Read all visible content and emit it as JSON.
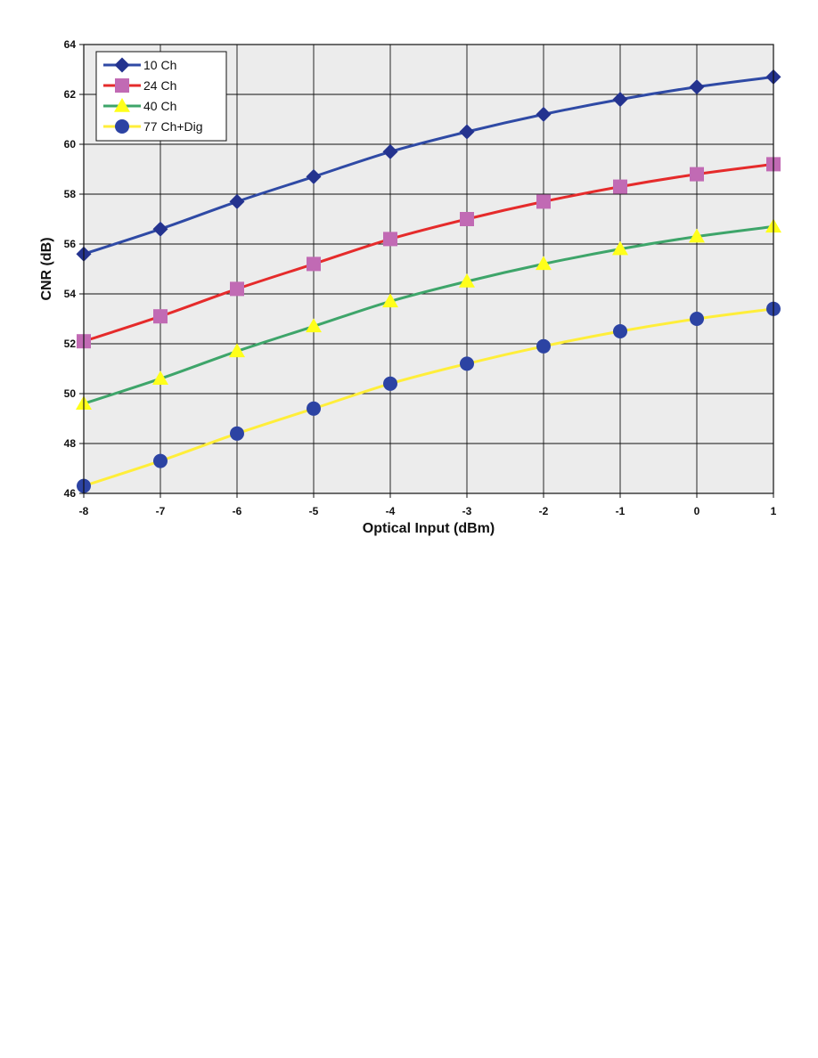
{
  "chart_data": {
    "type": "line",
    "title": "",
    "xlabel": "Optical Input (dBm)",
    "ylabel": "CNR (dB)",
    "x": [
      -8,
      -7,
      -6,
      -5,
      -4,
      -3,
      -2,
      -1,
      0,
      1
    ],
    "xlim": [
      -8,
      1
    ],
    "ylim": [
      46,
      64
    ],
    "xticks": [
      -8,
      -7,
      -6,
      -5,
      -4,
      -3,
      -2,
      -1,
      0,
      1
    ],
    "yticks": [
      46,
      48,
      50,
      52,
      54,
      56,
      58,
      60,
      62,
      64
    ],
    "grid": true,
    "legend_position": "top-left",
    "series": [
      {
        "name": "10 Ch",
        "values": [
          55.6,
          56.6,
          57.7,
          58.7,
          59.7,
          60.5,
          61.2,
          61.8,
          62.3,
          62.7
        ],
        "line_color": "#2f4aa5",
        "marker_color": "#24338f",
        "marker": "diamond"
      },
      {
        "name": "24 Ch",
        "values": [
          52.1,
          53.1,
          54.2,
          55.2,
          56.2,
          57.0,
          57.7,
          58.3,
          58.8,
          59.2
        ],
        "line_color": "#e52b2b",
        "marker_color": "#c16ab4",
        "marker": "square"
      },
      {
        "name": "40 Ch",
        "values": [
          49.6,
          50.6,
          51.7,
          52.7,
          53.7,
          54.5,
          55.2,
          55.8,
          56.3,
          56.7
        ],
        "line_color": "#3ea56a",
        "marker_color": "#ffff1a",
        "marker": "triangle"
      },
      {
        "name": "77 Ch+Dig",
        "values": [
          46.3,
          47.3,
          48.4,
          49.4,
          50.4,
          51.2,
          51.9,
          52.5,
          53.0,
          53.4
        ],
        "line_color": "#ffee3a",
        "marker_color": "#2c43a3",
        "marker": "circle"
      }
    ],
    "plot_background": "#ececec",
    "grid_color": "#111111"
  }
}
